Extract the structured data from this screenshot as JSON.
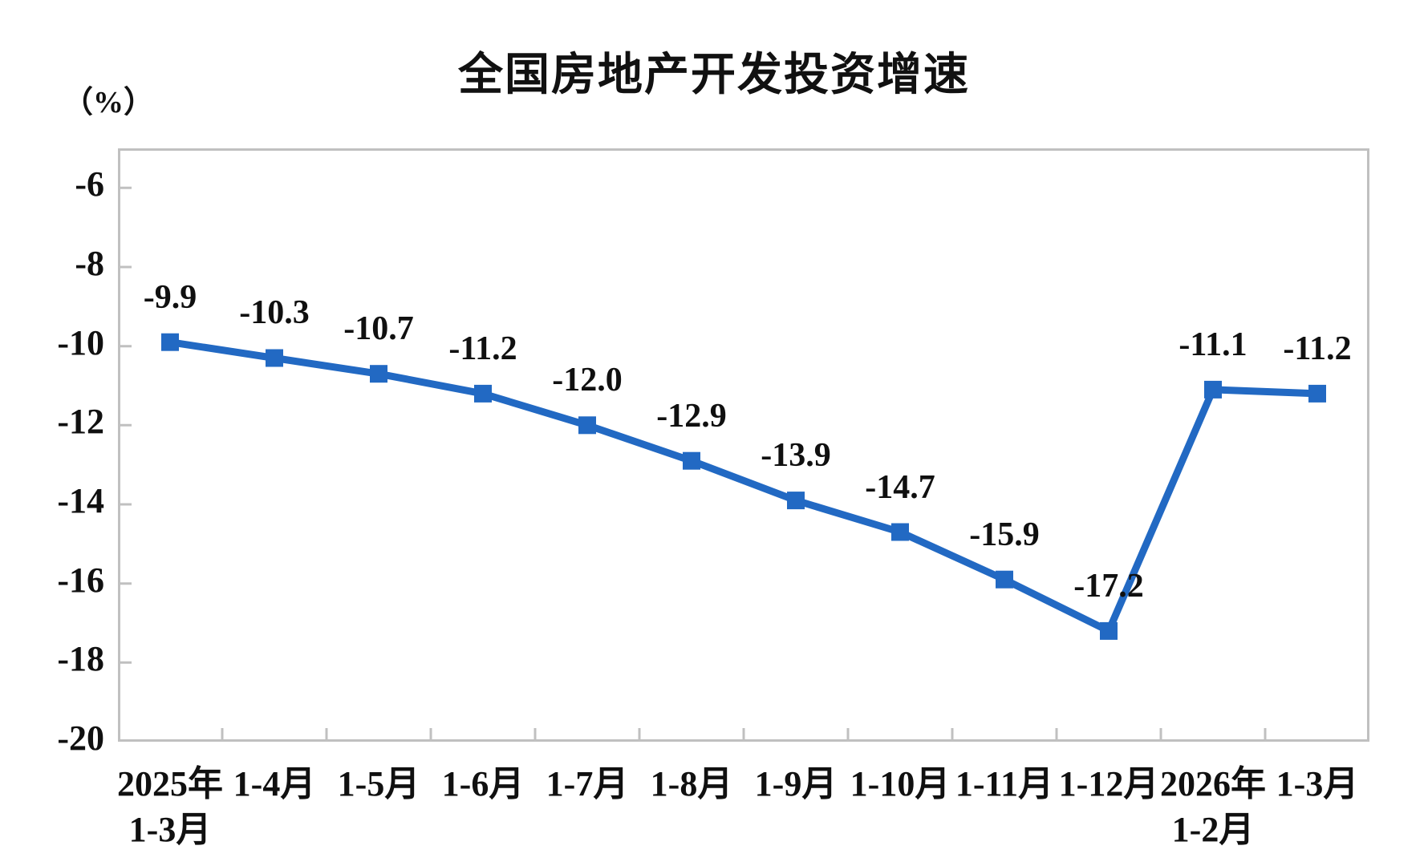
{
  "title": "全国房地产开发投资增速",
  "y_unit": "（%）",
  "chart_data": {
    "type": "line",
    "title": "全国房地产开发投资增速",
    "ylabel": "（%）",
    "xlabel": "",
    "grid": false,
    "legend_position": "none",
    "categories": [
      "2025年\n1-3月",
      "1-4月",
      "1-5月",
      "1-6月",
      "1-7月",
      "1-8月",
      "1-9月",
      "1-10月",
      "1-11月",
      "1-12月",
      "2026年\n1-2月",
      "1-3月"
    ],
    "values": [
      -9.9,
      -10.3,
      -10.7,
      -11.2,
      -12.0,
      -12.9,
      -13.9,
      -14.7,
      -15.9,
      -17.2,
      -11.1,
      -11.2
    ],
    "data_labels": [
      "-9.9",
      "-10.3",
      "-10.7",
      "-11.2",
      "-12.0",
      "-12.9",
      "-13.9",
      "-14.7",
      "-15.9",
      "-17.2",
      "-11.1",
      "-11.2"
    ],
    "ylim": [
      -20,
      -5
    ],
    "yticks": [
      -6,
      -8,
      -10,
      -12,
      -14,
      -16,
      -18,
      -20
    ],
    "marker": "square",
    "line_color": "#2269c3",
    "axis_color": "#c0c0c0",
    "text_color": "#101010"
  }
}
